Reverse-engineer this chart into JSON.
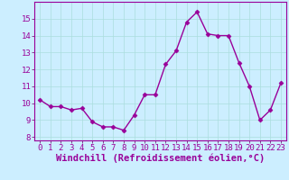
{
  "x": [
    0,
    1,
    2,
    3,
    4,
    5,
    6,
    7,
    8,
    9,
    10,
    11,
    12,
    13,
    14,
    15,
    16,
    17,
    18,
    19,
    20,
    21,
    22,
    23
  ],
  "y": [
    10.2,
    9.8,
    9.8,
    9.6,
    9.7,
    8.9,
    8.6,
    8.6,
    8.4,
    9.3,
    10.5,
    10.5,
    12.3,
    13.1,
    14.8,
    15.4,
    14.1,
    14.0,
    14.0,
    12.4,
    11.0,
    9.0,
    9.6,
    11.2
  ],
  "line_color": "#990099",
  "marker": "D",
  "marker_size": 2.5,
  "bg_color": "#cceeff",
  "grid_color": "#aadddd",
  "xlabel": "Windchill (Refroidissement éolien,°C)",
  "xlabel_fontsize": 7.5,
  "ylim": [
    7.8,
    16.0
  ],
  "xlim": [
    -0.5,
    23.5
  ],
  "yticks": [
    8,
    9,
    10,
    11,
    12,
    13,
    14,
    15
  ],
  "xticks": [
    0,
    1,
    2,
    3,
    4,
    5,
    6,
    7,
    8,
    9,
    10,
    11,
    12,
    13,
    14,
    15,
    16,
    17,
    18,
    19,
    20,
    21,
    22,
    23
  ],
  "tick_fontsize": 6.5,
  "line_width": 1.0
}
